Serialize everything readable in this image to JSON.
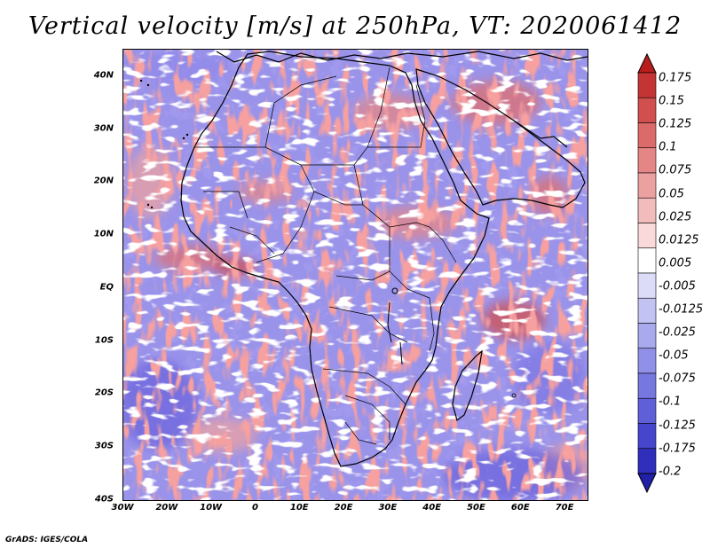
{
  "title": "Vertical velocity [m/s] at 250hPa, VT: 2020061412",
  "credit": "GrADS: IGES/COLA",
  "map": {
    "region": "Africa",
    "lon_range": [
      -30,
      75
    ],
    "lat_range": [
      -40,
      45
    ],
    "lat_labels": [
      "40N",
      "30N",
      "20N",
      "10N",
      "EQ",
      "10S",
      "20S",
      "30S",
      "40S"
    ],
    "lat_values": [
      40,
      30,
      20,
      10,
      0,
      -10,
      -20,
      -30,
      -40
    ],
    "lon_labels": [
      "30W",
      "20W",
      "10W",
      "0",
      "10E",
      "20E",
      "30E",
      "40E",
      "50E",
      "60E",
      "70E"
    ],
    "lon_values": [
      -30,
      -20,
      -10,
      0,
      10,
      20,
      30,
      40,
      50,
      60,
      70
    ]
  },
  "colorbar": {
    "labels": [
      "0.175",
      "0.15",
      "0.125",
      "0.1",
      "0.075",
      "0.05",
      "0.025",
      "0.0125",
      "0.005",
      "-0.005",
      "-0.0125",
      "-0.025",
      "-0.05",
      "-0.075",
      "-0.1",
      "-0.125",
      "-0.175",
      "-0.2"
    ],
    "colors": [
      "#b81c1c",
      "#c53434",
      "#d14f4f",
      "#db6a6a",
      "#e58686",
      "#eca1a1",
      "#f3bcbc",
      "#f9d9d9",
      "#ffffff",
      "#dcdcf8",
      "#c2c2f3",
      "#a9a9ee",
      "#9090e8",
      "#7777e0",
      "#5f5fd8",
      "#4646cc",
      "#2f2fbc",
      "#2020a8"
    ]
  },
  "colors": {
    "field_base": "#9a93ea",
    "positive": "#e07070",
    "negative": "#6a62dc",
    "coast": "#000000"
  }
}
